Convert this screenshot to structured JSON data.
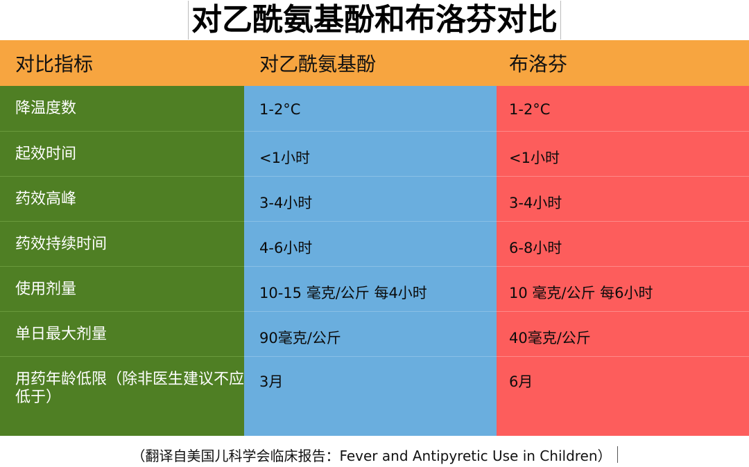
{
  "title": "对乙酰氨基酚和布洛芬对比",
  "header": {
    "metric": "对比指标",
    "acetaminophen": "对乙酰氨基酚",
    "ibuprofen": "布洛芬"
  },
  "rows": [
    {
      "metric": "降温度数",
      "acetaminophen": "1-2°C",
      "ibuprofen": "1-2°C"
    },
    {
      "metric": "起效时间",
      "acetaminophen": "<1小时",
      "ibuprofen": "<1小时"
    },
    {
      "metric": "药效高峰",
      "acetaminophen": "3-4小时",
      "ibuprofen": "3-4小时"
    },
    {
      "metric": "药效持续时间",
      "acetaminophen": "4-6小时",
      "ibuprofen": "6-8小时"
    },
    {
      "metric": "使用剂量",
      "acetaminophen": "10-15 毫克/公斤  每4小时",
      "ibuprofen": "10 毫克/公斤  每6小时"
    },
    {
      "metric": "单日最大剂量",
      "acetaminophen": "90毫克/公斤",
      "ibuprofen": "40毫克/公斤"
    },
    {
      "metric": "用药年龄低限（除非医生建议不应低于）",
      "acetaminophen": "3月",
      "ibuprofen": "6月"
    }
  ],
  "footer": "（翻译自美国儿科学会临床报告：Fever and Antipyretic Use in Children）",
  "colors": {
    "header_bg": "#f7a540",
    "metric_bg": "#4f7f24",
    "acetaminophen_bg": "#6aaede",
    "ibuprofen_bg": "#fd5d5c"
  }
}
